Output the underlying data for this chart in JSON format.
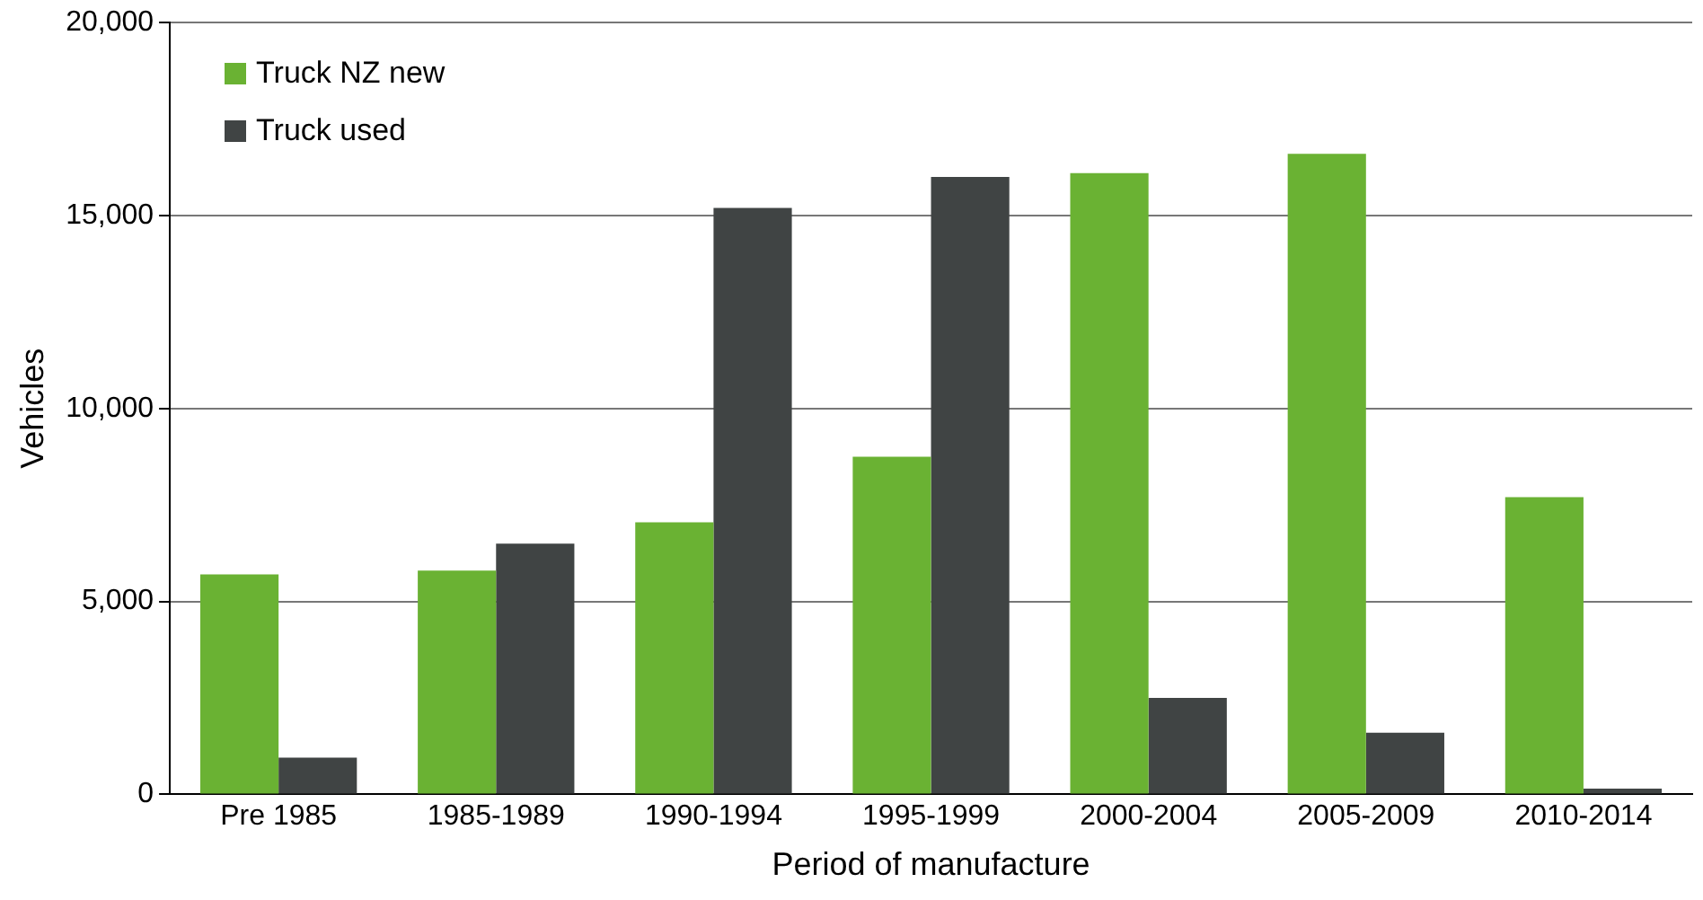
{
  "chart_data": {
    "type": "bar",
    "xlabel": "Period of manufacture",
    "ylabel": "Vehicles",
    "categories": [
      "Pre 1985",
      "1985-1989",
      "1990-1994",
      "1995-1999",
      "2000-2004",
      "2005-2009",
      "2010-2014"
    ],
    "series": [
      {
        "name": "Truck NZ new",
        "color": "#6ab233",
        "values": [
          5700,
          5800,
          7050,
          8750,
          16100,
          16600,
          7700
        ]
      },
      {
        "name": "Truck used",
        "color": "#404444",
        "values": [
          950,
          6500,
          15200,
          16000,
          2500,
          1600,
          150
        ]
      }
    ],
    "ylim": [
      0,
      20000
    ],
    "yticks": [
      0,
      {
        "value": 5000,
        "label": "5,000"
      },
      {
        "value": 10000,
        "label": "10,000"
      },
      {
        "value": 15000,
        "label": "15,000"
      },
      {
        "value": 20000,
        "label": "20,000"
      }
    ],
    "grid": "y",
    "legend": "top left"
  }
}
